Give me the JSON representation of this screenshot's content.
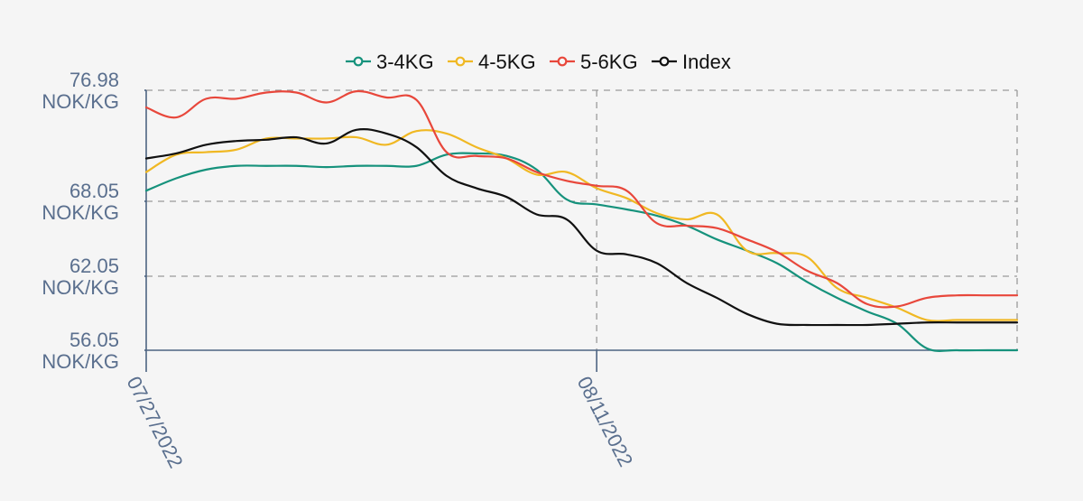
{
  "chart_data": {
    "type": "line",
    "title": "",
    "xlabel": "",
    "ylabel": "",
    "ylim": [
      56.05,
      76.98
    ],
    "grid": true,
    "legend_position": "top-center",
    "y_ticks": [
      {
        "value": 76.98,
        "line1": "76.98",
        "line2": "NOK/KG"
      },
      {
        "value": 68.05,
        "line1": "68.05",
        "line2": "NOK/KG"
      },
      {
        "value": 62.05,
        "line1": "62.05",
        "line2": "NOK/KG"
      },
      {
        "value": 56.05,
        "line1": "56.05",
        "line2": "NOK/KG"
      }
    ],
    "x_ticks": [
      {
        "index": 0,
        "label": "07/27/2022"
      },
      {
        "index": 15,
        "label": "08/11/2022"
      }
    ],
    "x_count": 30,
    "series": [
      {
        "name": "3-4KG",
        "color": "#16927c",
        "values": [
          68.9,
          69.9,
          70.6,
          70.9,
          70.9,
          70.9,
          70.8,
          70.9,
          70.9,
          70.9,
          71.8,
          71.9,
          71.7,
          70.6,
          68.2,
          67.8,
          67.4,
          66.9,
          66.1,
          65.0,
          64.1,
          63.1,
          61.6,
          60.3,
          59.2,
          58.2,
          56.2,
          56.05,
          56.05,
          56.05
        ]
      },
      {
        "name": "4-5KG",
        "color": "#f0b823",
        "values": [
          70.4,
          71.8,
          72.0,
          72.2,
          73.1,
          73.1,
          73.1,
          73.2,
          72.6,
          73.7,
          73.5,
          72.4,
          71.5,
          70.2,
          70.4,
          69.1,
          68.3,
          67.1,
          66.6,
          67.0,
          64.1,
          63.9,
          63.6,
          61.1,
          60.3,
          59.5,
          58.5,
          58.5,
          58.5,
          58.5
        ]
      },
      {
        "name": "5-6KG",
        "color": "#e8473b",
        "values": [
          75.6,
          74.8,
          76.3,
          76.3,
          76.8,
          76.8,
          76.0,
          76.9,
          76.4,
          76.2,
          72.0,
          71.7,
          71.5,
          70.4,
          69.7,
          69.3,
          68.9,
          66.3,
          66.1,
          65.9,
          65.0,
          64.0,
          62.5,
          61.5,
          59.8,
          59.6,
          60.3,
          60.5,
          60.5,
          60.5
        ]
      },
      {
        "name": "Index",
        "color": "#111111",
        "values": [
          71.5,
          71.9,
          72.6,
          72.9,
          73.0,
          73.2,
          72.7,
          73.8,
          73.5,
          72.4,
          70.1,
          69.1,
          68.4,
          67.0,
          66.6,
          64.1,
          63.8,
          63.1,
          61.5,
          60.3,
          59.0,
          58.2,
          58.1,
          58.1,
          58.1,
          58.2,
          58.3,
          58.3,
          58.3,
          58.3
        ]
      }
    ]
  }
}
